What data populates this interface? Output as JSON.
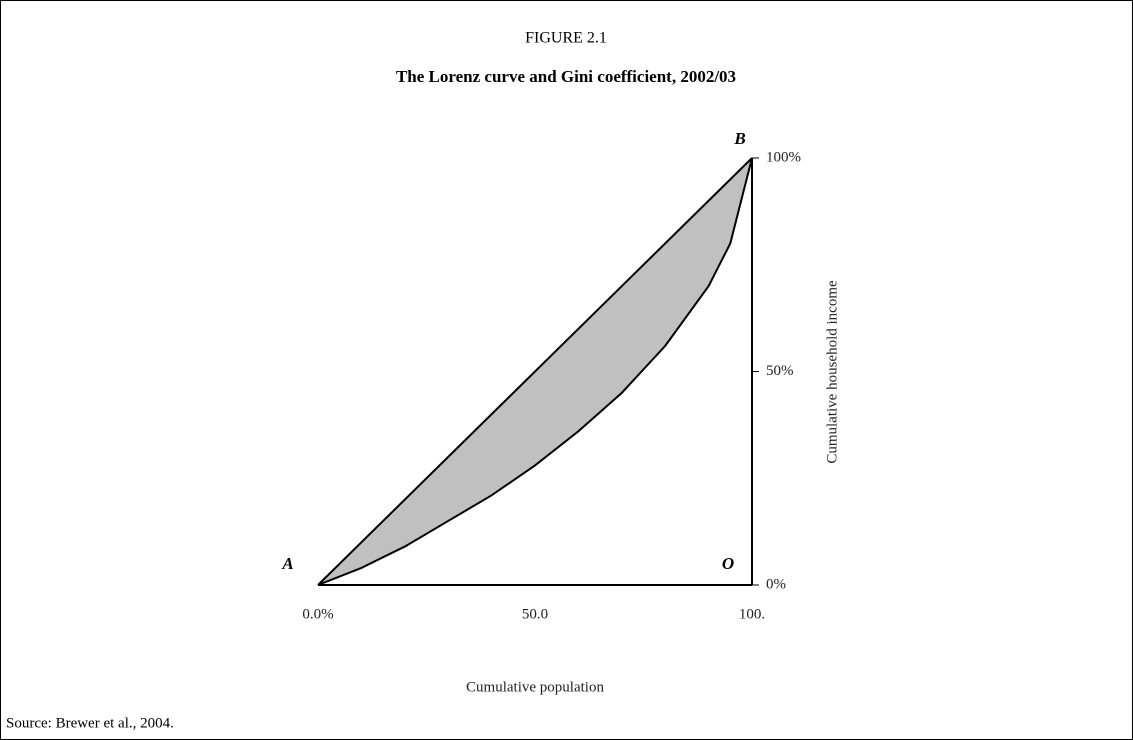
{
  "chart_data": {
    "type": "line",
    "figure_label": "FIGURE 2.1",
    "title": "The Lorenz curve and Gini coefficient, 2002/03",
    "x_label": "Cumulative population",
    "y_label": "Cumulative household income",
    "source": "Source: Brewer et al., 2004.",
    "annotations": [
      "A",
      "B",
      "O"
    ],
    "area_color": "#c0c0c0",
    "series": [
      {
        "color": "#000000",
        "x": [
          0,
          100
        ],
        "values": [
          0,
          100
        ]
      },
      {
        "color": "#000000",
        "x": [
          0,
          10,
          20,
          30,
          40,
          50,
          60,
          70,
          80,
          90,
          95,
          100
        ],
        "values": [
          0,
          4,
          9,
          15,
          21,
          28,
          36,
          45,
          56,
          70,
          80,
          100
        ]
      }
    ],
    "xlim": [
      0,
      100
    ],
    "ylim": [
      0,
      100
    ],
    "xticks": [
      {
        "value": 0,
        "label": "0.0%"
      },
      {
        "value": 50,
        "label": "50.0"
      },
      {
        "value": 100,
        "label": "100."
      }
    ],
    "yticks": [
      {
        "value": 0,
        "label": "0%"
      },
      {
        "value": 50,
        "label": "50%"
      },
      {
        "value": 100,
        "label": "100%"
      }
    ],
    "grid": false
  }
}
